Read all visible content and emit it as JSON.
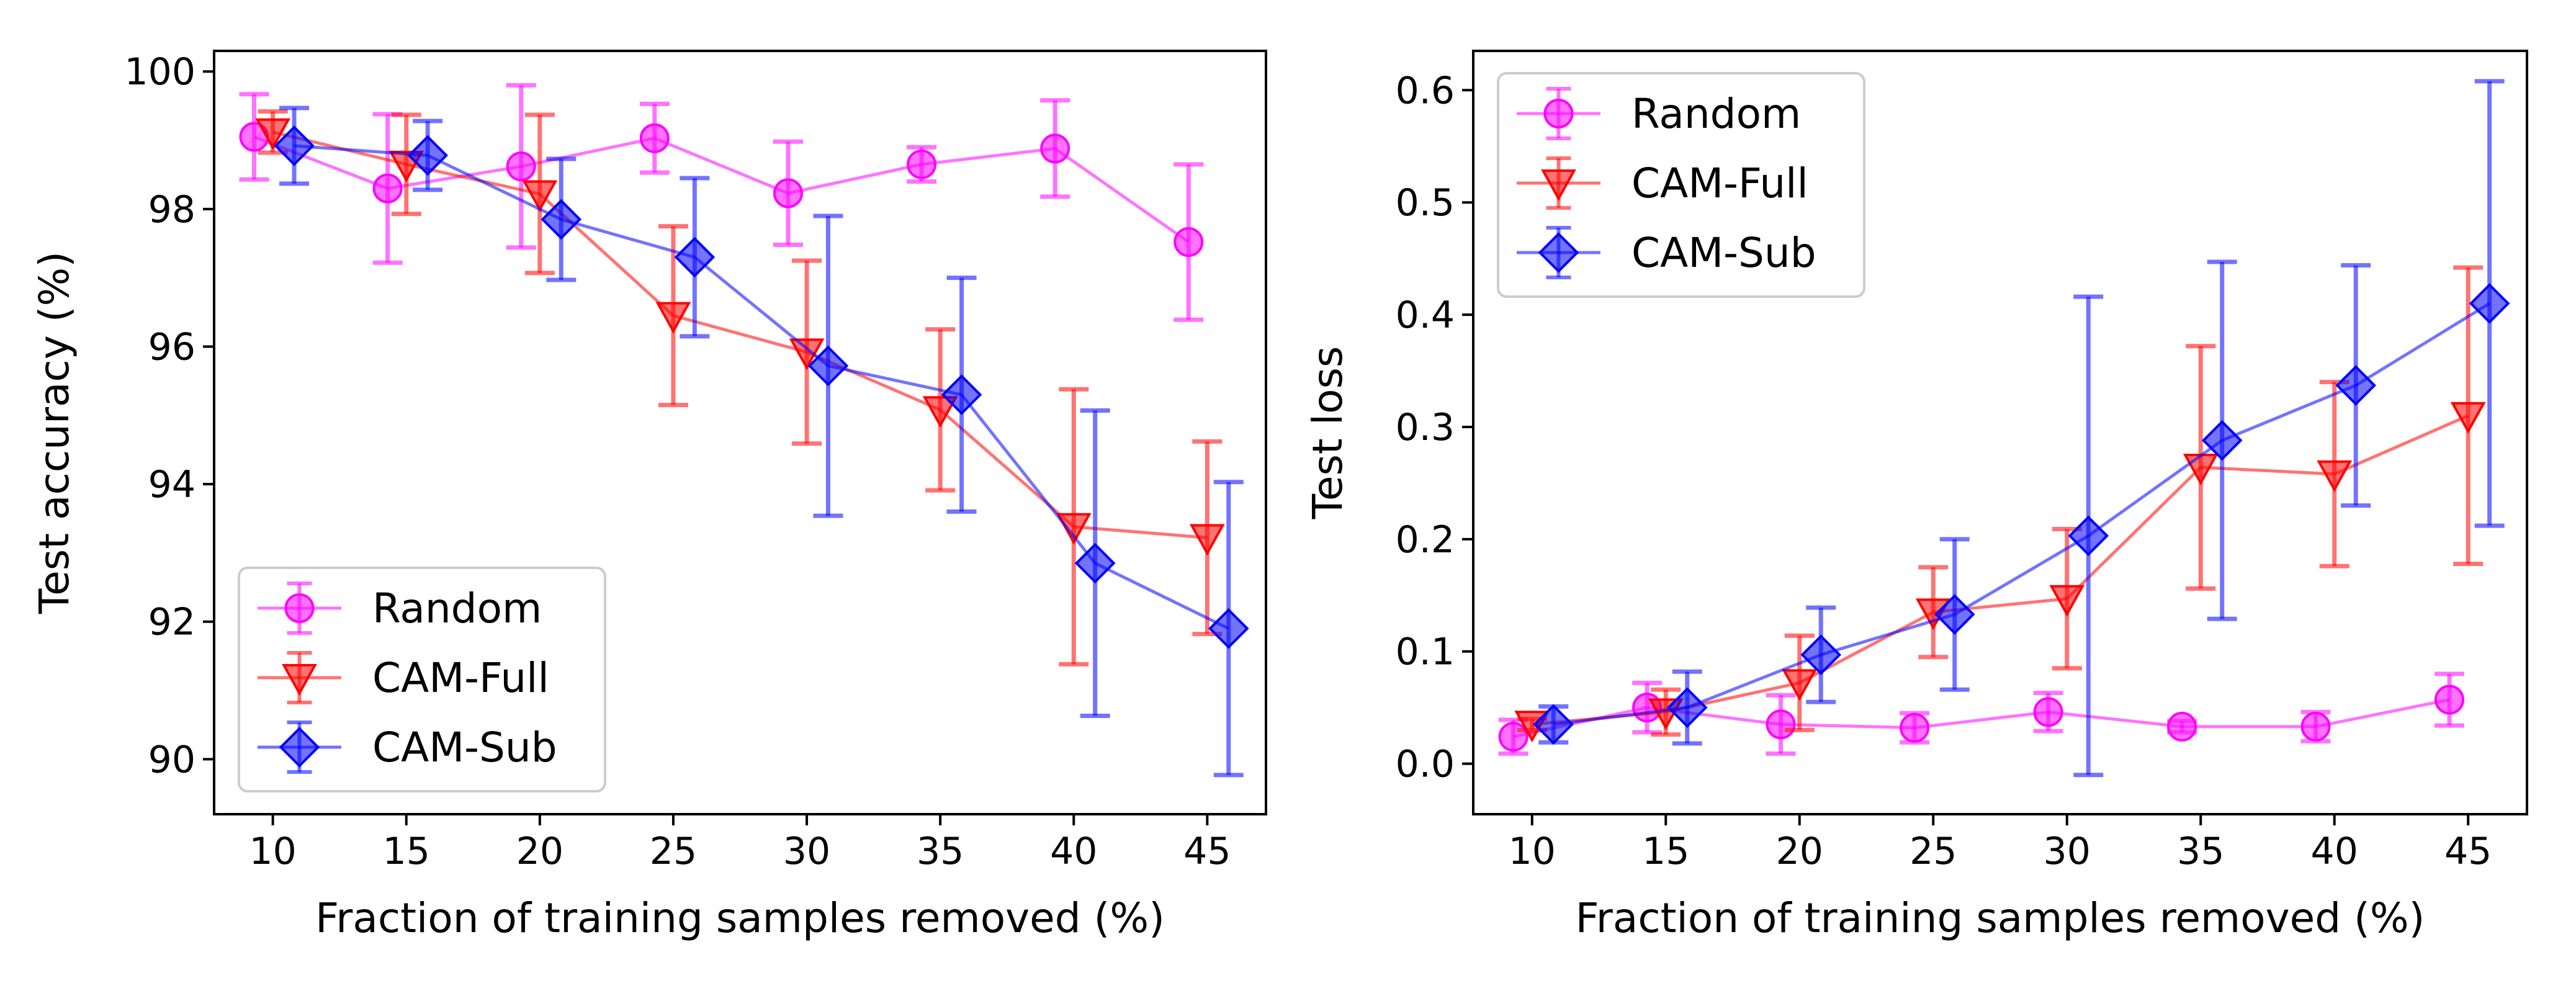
{
  "chart_data": [
    {
      "type": "line",
      "xlabel": "Fraction of training samples removed (%)",
      "ylabel": "Test accuracy (%)",
      "xlim": [
        7.8,
        47.2
      ],
      "ylim": [
        89.2,
        100.3
      ],
      "xticks": [
        10,
        15,
        20,
        25,
        30,
        35,
        40,
        45
      ],
      "yticks": [
        90,
        92,
        94,
        96,
        98,
        100
      ],
      "legend_position": "lower-left",
      "series": [
        {
          "name": "Random",
          "color": "#ff00ff",
          "marker": "circle",
          "x": [
            9.3,
            14.3,
            19.3,
            24.3,
            29.3,
            34.3,
            39.3,
            44.3
          ],
          "y": [
            99.05,
            98.3,
            98.62,
            99.03,
            98.23,
            98.65,
            98.88,
            97.52
          ],
          "err": [
            0.62,
            1.08,
            1.18,
            0.5,
            0.75,
            0.25,
            0.7,
            1.13
          ]
        },
        {
          "name": "CAM-Full",
          "color": "#ff0000",
          "marker": "triangle-down",
          "x": [
            10.0,
            15.0,
            20.0,
            25.0,
            30.0,
            35.0,
            40.0,
            45.0
          ],
          "y": [
            99.12,
            98.65,
            98.22,
            96.45,
            95.92,
            95.08,
            93.38,
            93.22
          ],
          "err": [
            0.3,
            0.72,
            1.15,
            1.3,
            1.33,
            1.17,
            2.0,
            1.4
          ]
        },
        {
          "name": "CAM-Sub",
          "color": "#0000ff",
          "marker": "diamond",
          "x": [
            10.8,
            15.8,
            20.8,
            25.8,
            30.8,
            35.8,
            40.8,
            45.8
          ],
          "y": [
            98.92,
            98.78,
            97.85,
            97.3,
            95.72,
            95.3,
            92.85,
            91.9
          ],
          "err": [
            0.55,
            0.5,
            0.88,
            1.15,
            2.18,
            1.7,
            2.22,
            2.13
          ]
        }
      ]
    },
    {
      "type": "line",
      "xlabel": "Fraction of training samples removed (%)",
      "ylabel": "Test loss",
      "xlim": [
        7.8,
        47.2
      ],
      "ylim": [
        -0.045,
        0.635
      ],
      "xticks": [
        10,
        15,
        20,
        25,
        30,
        35,
        40,
        45
      ],
      "yticks": [
        0.0,
        0.1,
        0.2,
        0.3,
        0.4,
        0.5,
        0.6
      ],
      "legend_position": "upper-left",
      "series": [
        {
          "name": "Random",
          "color": "#ff00ff",
          "marker": "circle",
          "x": [
            9.3,
            14.3,
            19.3,
            24.3,
            29.3,
            34.3,
            39.3,
            44.3
          ],
          "y": [
            0.024,
            0.05,
            0.035,
            0.032,
            0.046,
            0.033,
            0.033,
            0.057
          ],
          "err": [
            0.015,
            0.022,
            0.026,
            0.013,
            0.017,
            0.005,
            0.013,
            0.023
          ]
        },
        {
          "name": "CAM-Full",
          "color": "#ff0000",
          "marker": "triangle-down",
          "x": [
            10.0,
            15.0,
            20.0,
            25.0,
            30.0,
            35.0,
            40.0,
            45.0
          ],
          "y": [
            0.035,
            0.046,
            0.072,
            0.135,
            0.147,
            0.264,
            0.258,
            0.31
          ],
          "err": [
            0.005,
            0.02,
            0.042,
            0.04,
            0.062,
            0.108,
            0.082,
            0.132
          ]
        },
        {
          "name": "CAM-Sub",
          "color": "#0000ff",
          "marker": "diamond",
          "x": [
            10.8,
            15.8,
            20.8,
            25.8,
            30.8,
            35.8,
            40.8,
            45.8
          ],
          "y": [
            0.035,
            0.05,
            0.097,
            0.133,
            0.203,
            0.288,
            0.337,
            0.41
          ],
          "err": [
            0.016,
            0.032,
            0.042,
            0.067,
            0.213,
            0.159,
            0.107,
            0.198
          ]
        }
      ]
    }
  ]
}
